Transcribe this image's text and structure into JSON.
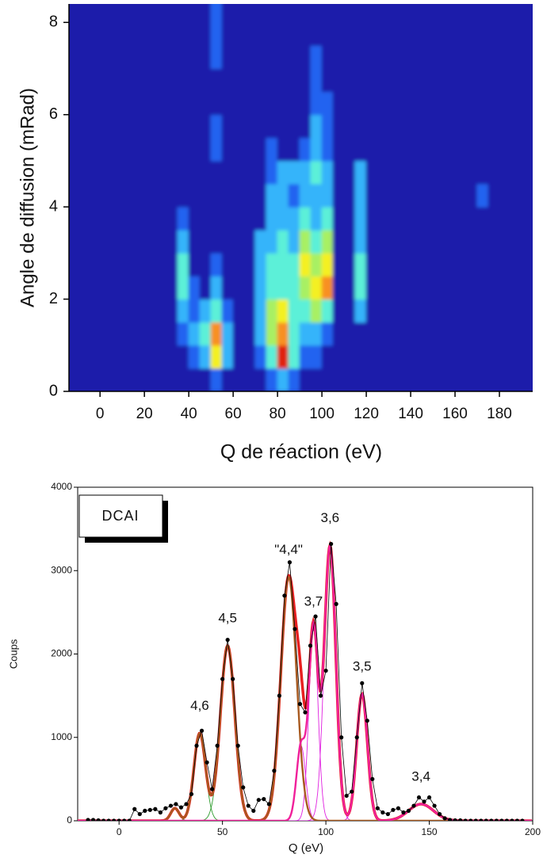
{
  "chart_data": [
    {
      "type": "heatmap",
      "xlabel": "Q de réaction (eV)",
      "ylabel": "Angle de diffusion (mRad)",
      "xlim": [
        -14,
        195
      ],
      "ylim": [
        0,
        8.4
      ],
      "xticks": [
        0,
        20,
        40,
        60,
        80,
        100,
        120,
        140,
        160,
        180
      ],
      "yticks": [
        0,
        2,
        4,
        6,
        8
      ],
      "xbins": [
        -15,
        -10,
        -5,
        0,
        5,
        10,
        15,
        20,
        25,
        30,
        35,
        40,
        45,
        50,
        55,
        60,
        65,
        70,
        75,
        80,
        85,
        90,
        95,
        100,
        105,
        110,
        115,
        120,
        125,
        130,
        135,
        140,
        145,
        150,
        155,
        160,
        165,
        170,
        175,
        180,
        185,
        190,
        195
      ],
      "ybins": [
        0,
        0.5,
        1,
        1.5,
        2,
        2.5,
        3,
        3.5,
        4,
        4.5,
        5,
        5.5,
        6,
        6.5,
        7,
        7.5,
        8,
        8.5
      ],
      "colorscale": [
        "#1a1aaa",
        "#2464f0",
        "#34b4fa",
        "#5cf0d8",
        "#a8f064",
        "#f4f024",
        "#f89020",
        "#e02010",
        "#600000"
      ],
      "z": [
        [
          0,
          0,
          0,
          0,
          0,
          0,
          0,
          0,
          0,
          0,
          0,
          0,
          0,
          1,
          0,
          0,
          0,
          0,
          1,
          2,
          1,
          0,
          0,
          0,
          0,
          0,
          0,
          0,
          0,
          0,
          0,
          0,
          0,
          0,
          0,
          0,
          0,
          0,
          0,
          0,
          0,
          0
        ],
        [
          0,
          0,
          0,
          0,
          0,
          0,
          0,
          0,
          0,
          0,
          0,
          1,
          2,
          5,
          2,
          0,
          0,
          1,
          3,
          7,
          3,
          1,
          1,
          0,
          0,
          0,
          0,
          0,
          0,
          0,
          0,
          0,
          0,
          0,
          0,
          0,
          0,
          0,
          0,
          0,
          0,
          0
        ],
        [
          0,
          0,
          0,
          0,
          0,
          0,
          0,
          0,
          0,
          0,
          1,
          2,
          3,
          6,
          2,
          0,
          0,
          2,
          4,
          6,
          3,
          2,
          2,
          1,
          0,
          0,
          0,
          0,
          0,
          0,
          0,
          0,
          0,
          0,
          0,
          0,
          0,
          0,
          0,
          0,
          0,
          0
        ],
        [
          0,
          0,
          0,
          0,
          0,
          0,
          0,
          0,
          0,
          0,
          2,
          1,
          2,
          3,
          1,
          0,
          0,
          2,
          4,
          5,
          3,
          3,
          4,
          3,
          0,
          0,
          2,
          0,
          0,
          0,
          0,
          0,
          0,
          0,
          0,
          0,
          0,
          0,
          0,
          0,
          0,
          0
        ],
        [
          0,
          0,
          0,
          0,
          0,
          0,
          0,
          0,
          0,
          0,
          3,
          1,
          0,
          2,
          0,
          0,
          0,
          2,
          3,
          3,
          3,
          4,
          5,
          6,
          0,
          0,
          3,
          0,
          0,
          0,
          0,
          0,
          0,
          0,
          0,
          0,
          0,
          0,
          0,
          0,
          0,
          0
        ],
        [
          0,
          0,
          0,
          0,
          0,
          0,
          0,
          0,
          0,
          0,
          3,
          0,
          0,
          1,
          0,
          0,
          0,
          2,
          3,
          3,
          3,
          5,
          4,
          5,
          0,
          0,
          3,
          0,
          0,
          0,
          0,
          0,
          0,
          0,
          0,
          0,
          0,
          0,
          0,
          0,
          0,
          0
        ],
        [
          0,
          0,
          0,
          0,
          0,
          0,
          0,
          0,
          0,
          0,
          2,
          0,
          0,
          0,
          0,
          0,
          0,
          2,
          2,
          3,
          2,
          4,
          3,
          4,
          0,
          0,
          2,
          0,
          0,
          0,
          0,
          0,
          0,
          0,
          0,
          0,
          0,
          0,
          0,
          0,
          0,
          0
        ],
        [
          0,
          0,
          0,
          0,
          0,
          0,
          0,
          0,
          0,
          0,
          1,
          0,
          0,
          0,
          0,
          0,
          0,
          0,
          2,
          2,
          2,
          3,
          2,
          3,
          0,
          0,
          2,
          0,
          0,
          0,
          0,
          0,
          0,
          0,
          0,
          0,
          0,
          0,
          0,
          0,
          0,
          0
        ],
        [
          0,
          0,
          0,
          0,
          0,
          0,
          0,
          0,
          0,
          0,
          0,
          0,
          0,
          0,
          0,
          0,
          0,
          0,
          2,
          2,
          1,
          2,
          2,
          2,
          0,
          0,
          2,
          0,
          0,
          0,
          0,
          0,
          0,
          0,
          0,
          0,
          0,
          1,
          0,
          0,
          0,
          0
        ],
        [
          0,
          0,
          0,
          0,
          0,
          0,
          0,
          0,
          0,
          0,
          0,
          0,
          0,
          0,
          0,
          0,
          0,
          0,
          1,
          2,
          2,
          2,
          3,
          2,
          0,
          0,
          2,
          0,
          0,
          0,
          0,
          0,
          0,
          0,
          0,
          0,
          0,
          0,
          0,
          0,
          0,
          0
        ],
        [
          0,
          0,
          0,
          0,
          0,
          0,
          0,
          0,
          0,
          0,
          0,
          0,
          0,
          1,
          0,
          0,
          0,
          0,
          1,
          0,
          0,
          1,
          2,
          1,
          0,
          0,
          0,
          0,
          0,
          0,
          0,
          0,
          0,
          0,
          0,
          0,
          0,
          0,
          0,
          0,
          0,
          0
        ],
        [
          0,
          0,
          0,
          0,
          0,
          0,
          0,
          0,
          0,
          0,
          0,
          0,
          0,
          1,
          0,
          0,
          0,
          0,
          0,
          0,
          0,
          0,
          2,
          1,
          0,
          0,
          0,
          0,
          0,
          0,
          0,
          0,
          0,
          0,
          0,
          0,
          0,
          0,
          0,
          0,
          0,
          0
        ],
        [
          0,
          0,
          0,
          0,
          0,
          0,
          0,
          0,
          0,
          0,
          0,
          0,
          0,
          0,
          0,
          0,
          0,
          0,
          0,
          0,
          0,
          0,
          1,
          1,
          0,
          0,
          0,
          0,
          0,
          0,
          0,
          0,
          0,
          0,
          0,
          0,
          0,
          0,
          0,
          0,
          0,
          0
        ],
        [
          0,
          0,
          0,
          0,
          0,
          0,
          0,
          0,
          0,
          0,
          0,
          0,
          0,
          0,
          0,
          0,
          0,
          0,
          0,
          0,
          0,
          0,
          1,
          0,
          0,
          0,
          0,
          0,
          0,
          0,
          0,
          0,
          0,
          0,
          0,
          0,
          0,
          0,
          0,
          0,
          0,
          0
        ],
        [
          0,
          0,
          0,
          0,
          0,
          0,
          0,
          0,
          0,
          0,
          0,
          0,
          0,
          1,
          0,
          0,
          0,
          0,
          0,
          0,
          0,
          0,
          1,
          0,
          0,
          0,
          0,
          0,
          0,
          0,
          0,
          0,
          0,
          0,
          0,
          0,
          0,
          0,
          0,
          0,
          0,
          0
        ],
        [
          0,
          0,
          0,
          0,
          0,
          0,
          0,
          0,
          0,
          0,
          0,
          0,
          0,
          1,
          0,
          0,
          0,
          0,
          0,
          0,
          0,
          0,
          0,
          0,
          0,
          0,
          0,
          0,
          0,
          0,
          0,
          0,
          0,
          0,
          0,
          0,
          0,
          0,
          0,
          0,
          0,
          0
        ],
        [
          0,
          0,
          0,
          0,
          0,
          0,
          0,
          0,
          0,
          0,
          0,
          0,
          0,
          1,
          0,
          0,
          0,
          0,
          0,
          0,
          0,
          0,
          0,
          0,
          0,
          0,
          0,
          0,
          0,
          0,
          0,
          0,
          0,
          0,
          0,
          0,
          0,
          0,
          0,
          0,
          0,
          0
        ]
      ]
    },
    {
      "type": "peak-fit",
      "xlabel": "Q (eV)",
      "ylabel": "Coups",
      "annotation": "DCAI",
      "xlim": [
        -20,
        200
      ],
      "ylim": [
        0,
        4000
      ],
      "xticks": [
        0,
        50,
        100,
        150,
        200
      ],
      "yticks": [
        0,
        1000,
        2000,
        3000,
        4000
      ],
      "color": "#000000",
      "fit_color": "#e82020",
      "x": [
        -15,
        -12.5,
        -10,
        -7.5,
        -5,
        -2.5,
        0,
        2.5,
        5,
        7.5,
        10,
        12.5,
        15,
        17.5,
        20,
        22.5,
        25,
        27.5,
        30,
        32.5,
        35,
        37.5,
        40,
        42.5,
        45,
        47.5,
        50,
        52.5,
        55,
        57.5,
        60,
        62.5,
        65,
        67.5,
        70,
        72.5,
        75,
        77.5,
        80,
        82.5,
        85,
        87.5,
        90,
        92.5,
        95,
        97.5,
        100,
        102.5,
        105,
        107.5,
        110,
        112.5,
        115,
        117.5,
        120,
        122.5,
        125,
        127.5,
        130,
        132.5,
        135,
        137.5,
        140,
        142.5,
        145,
        147.5,
        150,
        152.5,
        155,
        157.5,
        160,
        162.5,
        165,
        167.5,
        170,
        172.5,
        175,
        177.5,
        180,
        182.5,
        185,
        187.5,
        190,
        192.5,
        195
      ],
      "values": [
        10,
        10,
        5,
        0,
        0,
        0,
        0,
        0,
        0,
        140,
        80,
        120,
        130,
        140,
        100,
        150,
        180,
        200,
        160,
        200,
        320,
        900,
        1080,
        700,
        380,
        900,
        1700,
        2170,
        1700,
        900,
        400,
        180,
        120,
        250,
        260,
        200,
        600,
        1500,
        2700,
        3100,
        2300,
        1400,
        1300,
        2100,
        2450,
        1500,
        1800,
        3320,
        2600,
        1000,
        300,
        350,
        1000,
        1650,
        1200,
        500,
        150,
        100,
        80,
        130,
        150,
        100,
        120,
        180,
        280,
        230,
        280,
        180,
        80,
        30,
        10,
        5,
        5,
        0,
        0,
        0,
        0,
        0,
        0,
        0,
        0,
        0,
        0,
        0,
        0
      ],
      "groups": [
        {
          "color": "#2a9a2a",
          "fit_color": "#a85a20",
          "components": [
            {
              "label": null,
              "center": 27,
              "height": 150,
              "sigma": 2
            },
            {
              "label": "4,6",
              "center": 39,
              "height": 1050,
              "sigma": 2.8
            },
            {
              "label": "4,5",
              "center": 52.5,
              "height": 2100,
              "sigma": 3.5
            },
            {
              "label": "\"4,4\"",
              "center": 82,
              "height": 2920,
              "sigma": 3.8
            }
          ]
        },
        {
          "color": "#e020e0",
          "fit_color": "#f0209a",
          "components": [
            {
              "label": null,
              "center": 88,
              "height": 900,
              "sigma": 2.2
            },
            {
              "label": "3,7",
              "center": 94,
              "height": 2300,
              "sigma": 2.2
            },
            {
              "label": "3,6",
              "center": 102,
              "height": 3300,
              "sigma": 2.8
            },
            {
              "label": "3,5",
              "center": 117.5,
              "height": 1520,
              "sigma": 2.6
            },
            {
              "label": "3,4",
              "center": 146,
              "height": 200,
              "sigma": 6
            }
          ]
        }
      ]
    }
  ]
}
